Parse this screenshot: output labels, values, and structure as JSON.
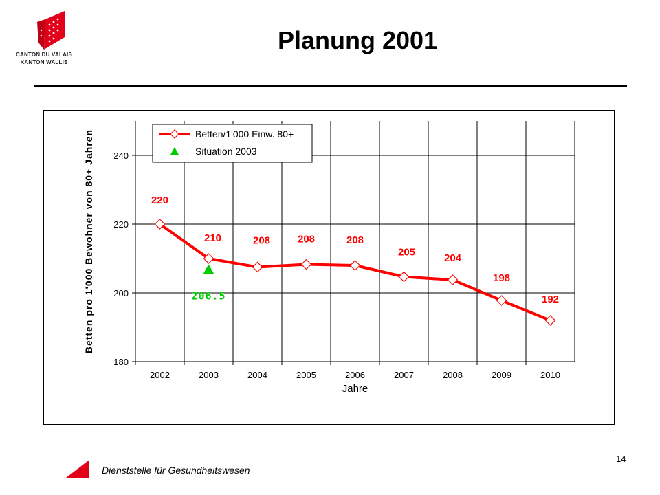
{
  "header": {
    "logo_line1": "CANTON DU VALAIS",
    "logo_line2": "KANTON WALLIS",
    "title": "Planung 2001"
  },
  "footer": {
    "text": "Dienststelle für Gesundheitswesen",
    "page_number": "14"
  },
  "colors": {
    "series": "#ff0000",
    "situation": "#00cc00",
    "label_red": "#ff0000",
    "label_green": "#00cc00",
    "logo_red": "#e2001a"
  },
  "chart_data": {
    "type": "line",
    "title": "",
    "xlabel": "Jahre",
    "ylabel": "Betten pro 1'000 Bewohner von 80+ Jahren",
    "ylim": [
      180,
      250
    ],
    "yticks": [
      180,
      200,
      220,
      240
    ],
    "grid": true,
    "legend_position": "top-left",
    "categories": [
      "2002",
      "2003",
      "2004",
      "2005",
      "2006",
      "2007",
      "2008",
      "2009",
      "2010"
    ],
    "series": [
      {
        "name": "Betten/1'000 Einw. 80+",
        "marker": "diamond",
        "values": [
          220,
          210,
          207.5,
          208.3,
          208,
          204.7,
          203.8,
          197.8,
          192
        ],
        "labels": [
          "220",
          "210",
          "208",
          "208",
          "208",
          "205",
          "204",
          "198",
          "192"
        ]
      },
      {
        "name": "Situation 2003",
        "marker": "triangle",
        "points": [
          {
            "x": "2003",
            "y": 206.5,
            "label": "206.5"
          }
        ]
      }
    ]
  }
}
